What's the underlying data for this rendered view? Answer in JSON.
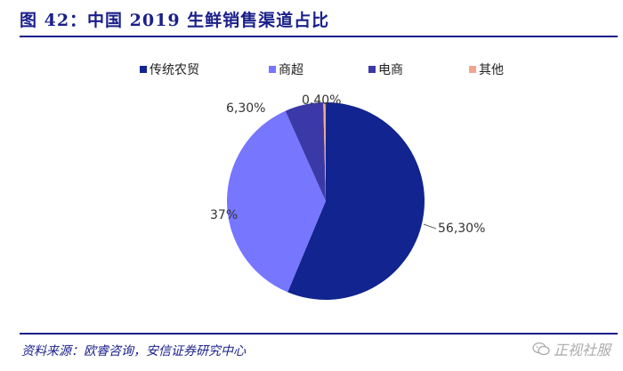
{
  "figure": {
    "title": "图 42：中国 2019 生鲜销售渠道占比",
    "source": "资料来源：欧睿咨询，安信证券研究中心",
    "watermark": "正视社服"
  },
  "chart_data": {
    "type": "pie",
    "title": "中国 2019 生鲜销售渠道占比",
    "legend_position": "top",
    "categories": [
      "传统农贸",
      "商超",
      "电商",
      "其他"
    ],
    "values": [
      56.3,
      37.0,
      6.3,
      0.4
    ],
    "labels": [
      "56,30%",
      "37%",
      "6,30%",
      "0,40%"
    ],
    "colors": [
      "#11248f",
      "#7676ff",
      "#3b39a8",
      "#f0a68e"
    ]
  }
}
